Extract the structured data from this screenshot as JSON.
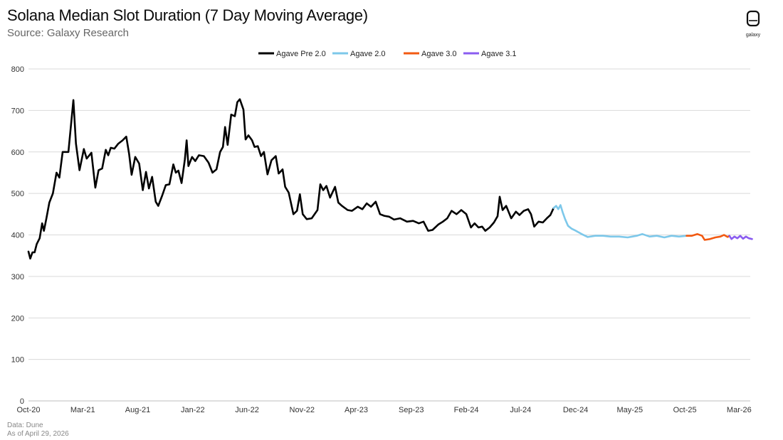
{
  "header": {
    "title": "Solana Median Slot Duration (7 Day Moving Average)",
    "subtitle": "Source: Galaxy Research",
    "logo_text": "galaxy"
  },
  "footer": {
    "data_source": "Data: Dune",
    "as_of": "As of April 29, 2026"
  },
  "colors": {
    "Agave Pre 2.0": "#000000",
    "Agave 2.0": "#7dc8ea",
    "Agave 3.0": "#f25a12",
    "Agave 3.1": "#8a5cf0",
    "grid": "#d9d9d9"
  },
  "chart_data": {
    "type": "line",
    "title": "Solana Median Slot Duration (7 Day Moving Average)",
    "subtitle": "Source: Galaxy Research",
    "xlabel": "",
    "ylabel": "",
    "ylim": [
      0,
      800
    ],
    "yticks": [
      0,
      100,
      200,
      300,
      400,
      500,
      600,
      700,
      800
    ],
    "xlim": [
      "2020-10",
      "2026-04"
    ],
    "xticks": [
      {
        "date": "2020-10",
        "label": "Oct-20"
      },
      {
        "date": "2021-03",
        "label": "Mar-21"
      },
      {
        "date": "2021-08",
        "label": "Aug-21"
      },
      {
        "date": "2022-01",
        "label": "Jan-22"
      },
      {
        "date": "2022-06",
        "label": "Jun-22"
      },
      {
        "date": "2022-11",
        "label": "Nov-22"
      },
      {
        "date": "2023-04",
        "label": "Apr-23"
      },
      {
        "date": "2023-09",
        "label": "Sep-23"
      },
      {
        "date": "2024-02",
        "label": "Feb-24"
      },
      {
        "date": "2024-07",
        "label": "Jul-24"
      },
      {
        "date": "2024-12",
        "label": "Dec-24"
      },
      {
        "date": "2025-05",
        "label": "May-25"
      },
      {
        "date": "2025-10",
        "label": "Oct-25"
      },
      {
        "date": "2026-03",
        "label": "Mar-26"
      }
    ],
    "grid": true,
    "legend": "top-center",
    "series": [
      {
        "name": "Agave Pre 2.0",
        "points": [
          [
            "2020-10-01",
            360
          ],
          [
            "2020-10-06",
            343
          ],
          [
            "2020-10-12",
            358
          ],
          [
            "2020-10-18",
            358
          ],
          [
            "2020-10-24",
            378
          ],
          [
            "2020-11-01",
            392
          ],
          [
            "2020-11-08",
            428
          ],
          [
            "2020-11-13",
            410
          ],
          [
            "2020-11-20",
            440
          ],
          [
            "2020-11-28",
            478
          ],
          [
            "2020-12-08",
            500
          ],
          [
            "2020-12-18",
            550
          ],
          [
            "2020-12-26",
            538
          ],
          [
            "2021-01-04",
            600
          ],
          [
            "2021-01-20",
            600
          ],
          [
            "2021-02-03",
            725
          ],
          [
            "2021-02-10",
            620
          ],
          [
            "2021-02-20",
            556
          ],
          [
            "2021-03-04",
            607
          ],
          [
            "2021-03-12",
            584
          ],
          [
            "2021-03-25",
            598
          ],
          [
            "2021-04-05",
            514
          ],
          [
            "2021-04-14",
            556
          ],
          [
            "2021-04-24",
            560
          ],
          [
            "2021-05-04",
            605
          ],
          [
            "2021-05-11",
            592
          ],
          [
            "2021-05-18",
            610
          ],
          [
            "2021-05-28",
            608
          ],
          [
            "2021-06-08",
            620
          ],
          [
            "2021-06-20",
            628
          ],
          [
            "2021-06-30",
            637
          ],
          [
            "2021-07-08",
            595
          ],
          [
            "2021-07-15",
            545
          ],
          [
            "2021-07-25",
            588
          ],
          [
            "2021-08-05",
            572
          ],
          [
            "2021-08-15",
            508
          ],
          [
            "2021-08-24",
            552
          ],
          [
            "2021-09-01",
            512
          ],
          [
            "2021-09-10",
            540
          ],
          [
            "2021-09-20",
            480
          ],
          [
            "2021-09-27",
            470
          ],
          [
            "2021-10-08",
            495
          ],
          [
            "2021-10-18",
            520
          ],
          [
            "2021-10-28",
            522
          ],
          [
            "2021-11-08",
            570
          ],
          [
            "2021-11-15",
            550
          ],
          [
            "2021-11-22",
            555
          ],
          [
            "2021-12-01",
            525
          ],
          [
            "2021-12-10",
            582
          ],
          [
            "2021-12-15",
            628
          ],
          [
            "2021-12-20",
            566
          ],
          [
            "2021-12-30",
            588
          ],
          [
            "2022-01-08",
            578
          ],
          [
            "2022-01-18",
            592
          ],
          [
            "2022-02-01",
            590
          ],
          [
            "2022-02-14",
            574
          ],
          [
            "2022-02-25",
            550
          ],
          [
            "2022-03-08",
            558
          ],
          [
            "2022-03-18",
            600
          ],
          [
            "2022-03-26",
            612
          ],
          [
            "2022-04-01",
            660
          ],
          [
            "2022-04-08",
            617
          ],
          [
            "2022-04-18",
            690
          ],
          [
            "2022-04-28",
            686
          ],
          [
            "2022-05-05",
            720
          ],
          [
            "2022-05-12",
            727
          ],
          [
            "2022-05-22",
            702
          ],
          [
            "2022-05-28",
            630
          ],
          [
            "2022-06-05",
            640
          ],
          [
            "2022-06-15",
            628
          ],
          [
            "2022-06-22",
            612
          ],
          [
            "2022-07-01",
            614
          ],
          [
            "2022-07-10",
            590
          ],
          [
            "2022-07-18",
            600
          ],
          [
            "2022-07-28",
            546
          ],
          [
            "2022-08-08",
            580
          ],
          [
            "2022-08-20",
            590
          ],
          [
            "2022-08-28",
            548
          ],
          [
            "2022-09-08",
            558
          ],
          [
            "2022-09-15",
            516
          ],
          [
            "2022-09-25",
            502
          ],
          [
            "2022-10-08",
            450
          ],
          [
            "2022-10-18",
            458
          ],
          [
            "2022-10-26",
            498
          ],
          [
            "2022-11-03",
            450
          ],
          [
            "2022-11-14",
            438
          ],
          [
            "2022-11-28",
            440
          ],
          [
            "2022-12-14",
            460
          ],
          [
            "2022-12-22",
            522
          ],
          [
            "2022-12-30",
            508
          ],
          [
            "2023-01-08",
            518
          ],
          [
            "2023-01-18",
            490
          ],
          [
            "2023-02-01",
            516
          ],
          [
            "2023-02-10",
            478
          ],
          [
            "2023-02-20",
            470
          ],
          [
            "2023-03-08",
            460
          ],
          [
            "2023-03-20",
            458
          ],
          [
            "2023-04-05",
            468
          ],
          [
            "2023-04-18",
            462
          ],
          [
            "2023-04-30",
            476
          ],
          [
            "2023-05-12",
            468
          ],
          [
            "2023-05-25",
            480
          ],
          [
            "2023-06-06",
            450
          ],
          [
            "2023-06-18",
            446
          ],
          [
            "2023-07-01",
            444
          ],
          [
            "2023-07-15",
            437
          ],
          [
            "2023-08-01",
            440
          ],
          [
            "2023-08-20",
            432
          ],
          [
            "2023-09-06",
            434
          ],
          [
            "2023-09-22",
            428
          ],
          [
            "2023-10-05",
            432
          ],
          [
            "2023-10-18",
            410
          ],
          [
            "2023-10-30",
            412
          ],
          [
            "2023-11-15",
            425
          ],
          [
            "2023-11-28",
            432
          ],
          [
            "2023-12-10",
            440
          ],
          [
            "2023-12-22",
            458
          ],
          [
            "2024-01-05",
            450
          ],
          [
            "2024-01-18",
            460
          ],
          [
            "2024-02-01",
            450
          ],
          [
            "2024-02-14",
            418
          ],
          [
            "2024-02-24",
            428
          ],
          [
            "2024-03-06",
            418
          ],
          [
            "2024-03-16",
            420
          ],
          [
            "2024-03-25",
            410
          ],
          [
            "2024-04-06",
            418
          ],
          [
            "2024-04-18",
            430
          ],
          [
            "2024-04-28",
            445
          ],
          [
            "2024-05-04",
            492
          ],
          [
            "2024-05-12",
            460
          ],
          [
            "2024-05-22",
            470
          ],
          [
            "2024-06-05",
            440
          ],
          [
            "2024-06-18",
            456
          ],
          [
            "2024-06-28",
            448
          ],
          [
            "2024-07-10",
            458
          ],
          [
            "2024-07-22",
            462
          ],
          [
            "2024-07-30",
            450
          ],
          [
            "2024-08-08",
            420
          ],
          [
            "2024-08-20",
            432
          ],
          [
            "2024-09-01",
            430
          ],
          [
            "2024-09-12",
            440
          ],
          [
            "2024-09-22",
            448
          ],
          [
            "2024-10-01",
            465
          ]
        ]
      },
      {
        "name": "Agave 2.0",
        "points": [
          [
            "2024-10-01",
            465
          ],
          [
            "2024-10-08",
            470
          ],
          [
            "2024-10-14",
            462
          ],
          [
            "2024-10-20",
            472
          ],
          [
            "2024-10-26",
            455
          ],
          [
            "2024-11-02",
            438
          ],
          [
            "2024-11-10",
            422
          ],
          [
            "2024-11-20",
            415
          ],
          [
            "2024-12-02",
            410
          ],
          [
            "2024-12-18",
            402
          ],
          [
            "2025-01-04",
            395
          ],
          [
            "2025-01-25",
            398
          ],
          [
            "2025-02-15",
            398
          ],
          [
            "2025-03-08",
            396
          ],
          [
            "2025-04-01",
            396
          ],
          [
            "2025-04-25",
            394
          ],
          [
            "2025-05-20",
            398
          ],
          [
            "2025-06-05",
            402
          ],
          [
            "2025-06-25",
            396
          ],
          [
            "2025-07-15",
            398
          ],
          [
            "2025-08-05",
            394
          ],
          [
            "2025-08-25",
            398
          ],
          [
            "2025-09-15",
            396
          ],
          [
            "2025-10-06",
            398
          ]
        ]
      },
      {
        "name": "Agave 3.0",
        "points": [
          [
            "2025-10-06",
            398
          ],
          [
            "2025-10-20",
            398
          ],
          [
            "2025-11-05",
            402
          ],
          [
            "2025-11-18",
            398
          ],
          [
            "2025-11-25",
            388
          ],
          [
            "2025-12-10",
            390
          ],
          [
            "2025-12-25",
            394
          ],
          [
            "2026-01-08",
            396
          ],
          [
            "2026-01-18",
            400
          ],
          [
            "2026-01-28",
            395
          ],
          [
            "2026-02-02",
            398
          ]
        ]
      },
      {
        "name": "Agave 3.1",
        "points": [
          [
            "2026-02-02",
            398
          ],
          [
            "2026-02-08",
            390
          ],
          [
            "2026-02-16",
            396
          ],
          [
            "2026-02-24",
            392
          ],
          [
            "2026-03-04",
            398
          ],
          [
            "2026-03-12",
            391
          ],
          [
            "2026-03-20",
            396
          ],
          [
            "2026-03-28",
            392
          ],
          [
            "2026-04-06",
            390
          ]
        ]
      }
    ]
  }
}
